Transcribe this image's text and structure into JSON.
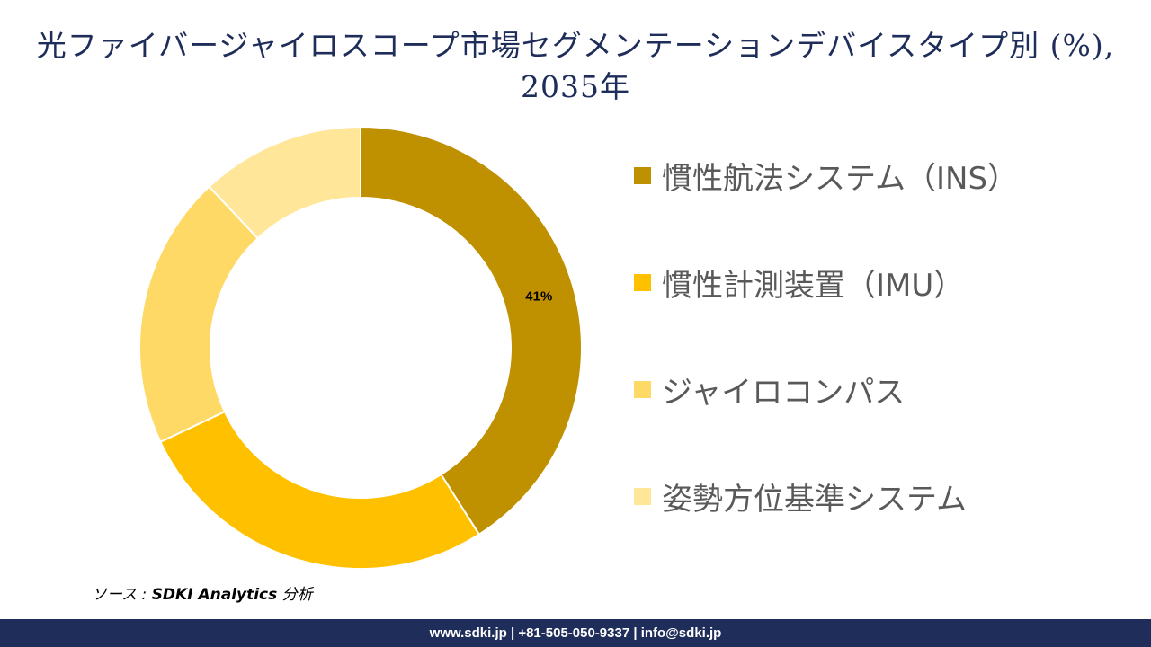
{
  "title": "光ファイバージャイロスコープ市場セグメンテーションデバイスタイプ別 (%), 2035年",
  "chart_data": {
    "type": "pie",
    "style": "donut",
    "title": "光ファイバージャイロスコープ市場セグメンテーションデバイスタイプ別 (%), 2035年",
    "categories": [
      "慣性航法システム（INS）",
      "慣性計測装置（IMU）",
      "ジャイロコンパス",
      "姿勢方位基準システム"
    ],
    "values": [
      41,
      27,
      20,
      12
    ],
    "data_labels": [
      "41%",
      "",
      "",
      ""
    ],
    "colors": [
      "#bf9000",
      "#ffc000",
      "#ffd966",
      "#ffe699"
    ],
    "legend_placement": "right"
  },
  "source": {
    "prefix": "ソース : ",
    "name": "SDKI Analytics",
    "suffix": " 分析"
  },
  "footer": "www.sdki.jp | +81-505-050-9337 | info@sdki.jp"
}
